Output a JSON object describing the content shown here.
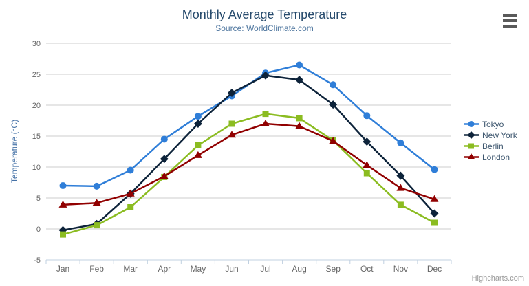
{
  "chart_data": {
    "type": "line",
    "title": "Monthly Average Temperature",
    "subtitle": "Source: WorldClimate.com",
    "xlabel": "",
    "ylabel": "Temperature (°C)",
    "ylim": [
      -5,
      30
    ],
    "ytick_step": 5,
    "grid": true,
    "legend_position": "right",
    "categories": [
      "Jan",
      "Feb",
      "Mar",
      "Apr",
      "May",
      "Jun",
      "Jul",
      "Aug",
      "Sep",
      "Oct",
      "Nov",
      "Dec"
    ],
    "series": [
      {
        "name": "Tokyo",
        "color": "#2f7ed8",
        "marker": "circle",
        "values": [
          7.0,
          6.9,
          9.5,
          14.5,
          18.2,
          21.5,
          25.2,
          26.5,
          23.3,
          18.3,
          13.9,
          9.6
        ]
      },
      {
        "name": "New York",
        "color": "#0d233a",
        "marker": "diamond",
        "values": [
          -0.2,
          0.8,
          5.7,
          11.3,
          17.0,
          22.0,
          24.8,
          24.1,
          20.1,
          14.1,
          8.6,
          2.5
        ]
      },
      {
        "name": "Berlin",
        "color": "#8bbc21",
        "marker": "square",
        "values": [
          -0.9,
          0.6,
          3.5,
          8.4,
          13.5,
          17.0,
          18.6,
          17.9,
          14.3,
          9.0,
          3.9,
          1.0
        ]
      },
      {
        "name": "London",
        "color": "#910000",
        "marker": "triangle",
        "values": [
          3.9,
          4.2,
          5.7,
          8.5,
          11.9,
          15.2,
          17.0,
          16.6,
          14.2,
          10.3,
          6.6,
          4.8
        ]
      }
    ]
  },
  "credits": "Highcharts.com",
  "export_menu": {
    "icon": "hamburger-icon"
  },
  "colors": {
    "title": "#274b6d",
    "subtitle": "#4d759e",
    "axis_label": "#666666",
    "axis_title": "#4572a7",
    "gridline": "#cccccc",
    "axis_line": "#c0d0e0",
    "legend_text": "#3e576f",
    "export_icon": "#5a5a5a",
    "credits_text": "#999999"
  }
}
